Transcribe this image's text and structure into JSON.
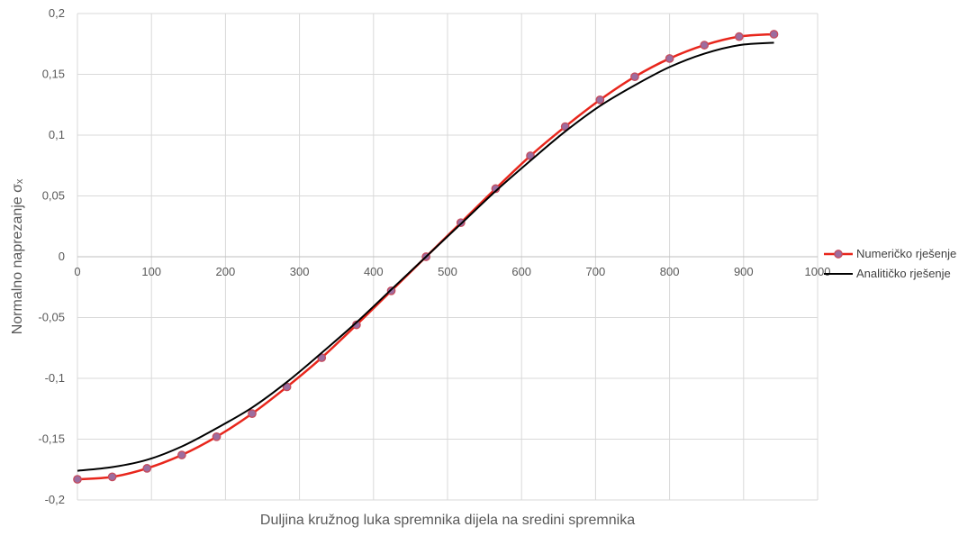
{
  "chart_data": {
    "type": "line",
    "title": "",
    "xlabel": "Duljina kružnog luka spremnika dijela na sredini spremnika",
    "ylabel": "Normalno naprezanje σₓ",
    "xlim": [
      0,
      1000
    ],
    "ylim": [
      -0.2,
      0.2
    ],
    "grid": true,
    "legend_position": "right",
    "x_ticks": [
      0,
      100,
      200,
      300,
      400,
      500,
      600,
      700,
      800,
      900,
      1000
    ],
    "x_tick_labels": [
      "0",
      "100",
      "200",
      "300",
      "400",
      "500",
      "600",
      "700",
      "800",
      "900",
      "1000"
    ],
    "y_ticks": [
      0.2,
      0.15,
      0.1,
      0.05,
      0,
      -0.05,
      -0.1,
      -0.15,
      -0.2
    ],
    "y_tick_labels": [
      "0,2",
      "0,15",
      "0,1",
      "0,05",
      "0",
      "-0,05",
      "-0,1",
      "-0,15",
      "-0,2"
    ],
    "series": [
      {
        "name": "Numeričko rješenje",
        "color": "#e8261c",
        "marker_color": "#9c6d9f",
        "marker_edge_color": "#c64b5d",
        "markers": true,
        "x": [
          0,
          47,
          94,
          141,
          188,
          236,
          283,
          330,
          377,
          424,
          471,
          518,
          565,
          612,
          659,
          706,
          753,
          800,
          847,
          894,
          941
        ],
        "y": [
          -0.183,
          -0.181,
          -0.174,
          -0.163,
          -0.148,
          -0.129,
          -0.107,
          -0.083,
          -0.056,
          -0.028,
          0.0,
          0.028,
          0.056,
          0.083,
          0.107,
          0.129,
          0.148,
          0.163,
          0.174,
          0.181,
          0.183
        ]
      },
      {
        "name": "Analitičko rješenje",
        "color": "#000000",
        "markers": false,
        "x": [
          0,
          47,
          94,
          141,
          188,
          236,
          283,
          330,
          377,
          424,
          471,
          518,
          565,
          612,
          659,
          706,
          753,
          800,
          847,
          894,
          941
        ],
        "y": [
          -0.176,
          -0.173,
          -0.167,
          -0.156,
          -0.141,
          -0.124,
          -0.103,
          -0.079,
          -0.054,
          -0.027,
          0.0,
          0.027,
          0.054,
          0.079,
          0.103,
          0.124,
          0.141,
          0.156,
          0.167,
          0.174,
          0.176
        ]
      }
    ]
  }
}
